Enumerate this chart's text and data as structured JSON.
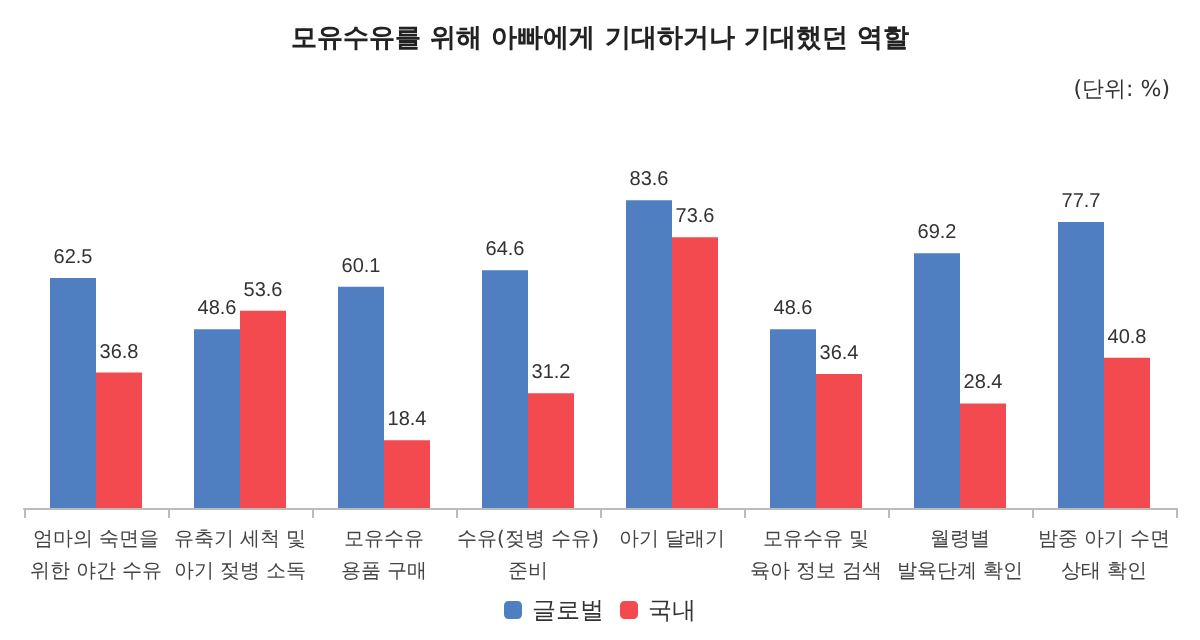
{
  "chart_data": {
    "type": "bar",
    "title": "모유수유를 위해 아빠에게 기대하거나 기대했던 역할",
    "subtitle": "(단위: %)",
    "categories": [
      "엄마의 숙면을\n위한 야간 수유",
      "유축기 세척 및\n아기 젖병 소독",
      "모유수유\n용품 구매",
      "수유(젖병 수유)\n준비",
      "아기 달래기",
      "모유수유 및\n육아 정보 검색",
      "월령별\n발육단계 확인",
      "밤중 아기 수면\n상태 확인"
    ],
    "series": [
      {
        "name": "글로벌",
        "color": "#4f7fc0",
        "values": [
          62.5,
          48.6,
          60.1,
          64.6,
          83.6,
          48.6,
          69.2,
          77.7
        ]
      },
      {
        "name": "국내",
        "color": "#f24a4e",
        "values": [
          36.8,
          53.6,
          18.4,
          31.2,
          73.6,
          36.4,
          28.4,
          40.8
        ]
      }
    ],
    "data_labels": true,
    "legend": "bottom"
  }
}
